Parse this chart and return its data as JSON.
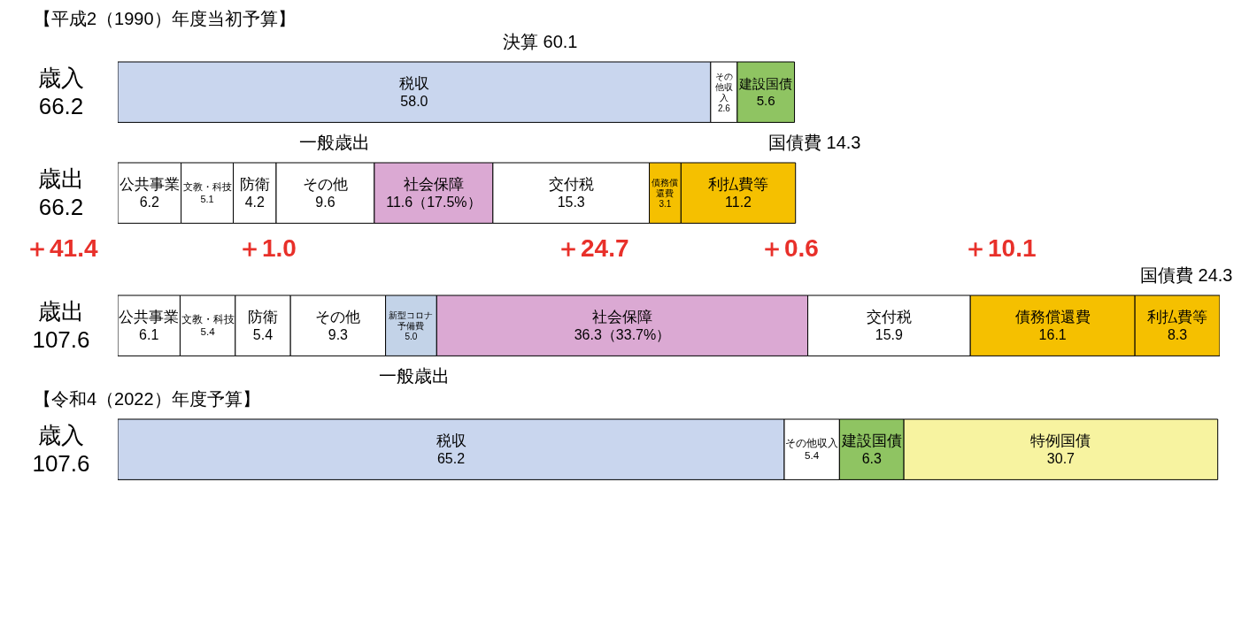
{
  "chart_data": [
    {
      "type": "bar",
      "orientation": "horizontal",
      "stacked": true,
      "title": "【平成2（1990）年度当初予算】",
      "categories": [
        "歳入 66.2"
      ],
      "tick_labels": "y",
      "series": [
        {
          "name": "税収",
          "color": "#c9d6ee",
          "values": [
            58.0
          ],
          "value_labels": [
            "58.0"
          ]
        },
        {
          "name": "その他収入",
          "color": "#ffffff",
          "values": [
            2.6
          ],
          "value_labels": [
            "2.6"
          ]
        },
        {
          "name": "建設国債",
          "color": "#8fc462",
          "values": [
            5.6
          ],
          "value_labels": [
            "5.6"
          ]
        }
      ],
      "annotations": [
        "決算 60.1"
      ]
    },
    {
      "type": "bar",
      "orientation": "horizontal",
      "stacked": true,
      "categories": [
        "歳出 66.2"
      ],
      "tick_labels": "y",
      "series": [
        {
          "name": "公共事業",
          "color": "#ffffff",
          "values": [
            6.2
          ],
          "value_labels": [
            "6.2"
          ]
        },
        {
          "name": "文教・科技",
          "color": "#ffffff",
          "values": [
            5.1
          ],
          "value_labels": [
            "5.1"
          ]
        },
        {
          "name": "防衛",
          "color": "#ffffff",
          "values": [
            4.2
          ],
          "value_labels": [
            "4.2"
          ]
        },
        {
          "name": "その他",
          "color": "#ffffff",
          "values": [
            9.6
          ],
          "value_labels": [
            "9.6"
          ]
        },
        {
          "name": "社会保障",
          "color": "#dba9d3",
          "values": [
            11.6
          ],
          "value_labels": [
            "11.6（17.5%）"
          ]
        },
        {
          "name": "交付税",
          "color": "#ffffff",
          "values": [
            15.3
          ],
          "value_labels": [
            "15.3"
          ]
        },
        {
          "name": "債務償還費",
          "color": "#f5c000",
          "values": [
            3.1
          ],
          "value_labels": [
            "3.1"
          ]
        },
        {
          "name": "利払費等",
          "color": "#f5c000",
          "values": [
            11.2
          ],
          "value_labels": [
            "11.2"
          ]
        }
      ],
      "annotations": [
        "一般歳出",
        "国債費 14.3"
      ]
    },
    {
      "type": "bar",
      "orientation": "horizontal",
      "stacked": true,
      "categories": [
        "歳出 107.6"
      ],
      "tick_labels": "y",
      "series": [
        {
          "name": "公共事業",
          "color": "#ffffff",
          "values": [
            6.1
          ],
          "value_labels": [
            "6.1"
          ]
        },
        {
          "name": "文教・科技",
          "color": "#ffffff",
          "values": [
            5.4
          ],
          "value_labels": [
            "5.4"
          ]
        },
        {
          "name": "防衛",
          "color": "#ffffff",
          "values": [
            5.4
          ],
          "value_labels": [
            "5.4"
          ]
        },
        {
          "name": "その他",
          "color": "#ffffff",
          "values": [
            9.3
          ],
          "value_labels": [
            "9.3"
          ]
        },
        {
          "name": "新型コロナ予備費",
          "color": "#c3d3e8",
          "values": [
            5.0
          ],
          "value_labels": [
            "5.0"
          ]
        },
        {
          "name": "社会保障",
          "color": "#dba9d3",
          "values": [
            36.3
          ],
          "value_labels": [
            "36.3（33.7%）"
          ]
        },
        {
          "name": "交付税",
          "color": "#ffffff",
          "values": [
            15.9
          ],
          "value_labels": [
            "15.9"
          ]
        },
        {
          "name": "債務償還費",
          "color": "#f5c000",
          "values": [
            16.1
          ],
          "value_labels": [
            "16.1"
          ]
        },
        {
          "name": "利払費等",
          "color": "#f5c000",
          "values": [
            8.3
          ],
          "value_labels": [
            "8.3"
          ]
        }
      ],
      "annotations": [
        "＋41.4",
        "＋1.0",
        "＋24.7",
        "＋0.6",
        "＋10.1",
        "国債費 24.3",
        "一般歳出"
      ]
    },
    {
      "type": "bar",
      "orientation": "horizontal",
      "stacked": true,
      "title": "【令和4（2022）年度予算】",
      "categories": [
        "歳入 107.6"
      ],
      "tick_labels": "y",
      "series": [
        {
          "name": "税収",
          "color": "#c9d6ee",
          "values": [
            65.2
          ],
          "value_labels": [
            "65.2"
          ]
        },
        {
          "name": "その他収入",
          "color": "#ffffff",
          "values": [
            5.4
          ],
          "value_labels": [
            "5.4"
          ]
        },
        {
          "name": "建設国債",
          "color": "#8fc462",
          "values": [
            6.3
          ],
          "value_labels": [
            "6.3"
          ]
        },
        {
          "name": "特例国債",
          "color": "#f7f3a0",
          "values": [
            30.7
          ],
          "value_labels": [
            "30.7"
          ]
        }
      ]
    }
  ]
}
